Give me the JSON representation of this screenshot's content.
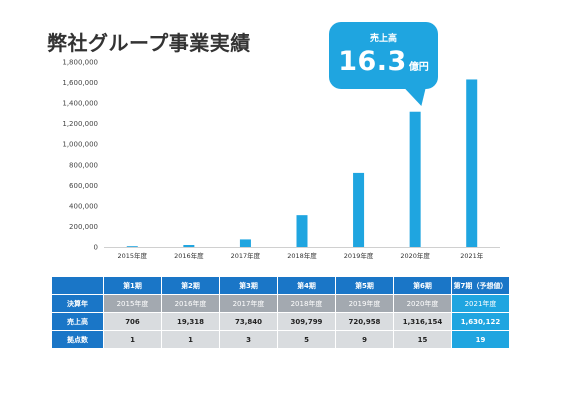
{
  "page_title": "弊社グループ事業実績",
  "callout": {
    "label": "売上高",
    "value": "16.3",
    "unit": "億円"
  },
  "colors": {
    "bar": "#1fa5e0",
    "header": "#1a76c7",
    "highlight": "#1fa5e0",
    "year_cell": "#a3a9b0",
    "value_cell": "#d9dcdf"
  },
  "chart_data": {
    "type": "bar",
    "categories": [
      "2015年度",
      "2016年度",
      "2017年度",
      "2018年度",
      "2019年度",
      "2020年度",
      "2021年"
    ],
    "values": [
      706,
      19318,
      73840,
      309799,
      720958,
      1316154,
      1630122
    ],
    "ylim": [
      0,
      1800000
    ],
    "yticks": [
      "0",
      "200,000",
      "400,000",
      "600,000",
      "800,000",
      "1,000,000",
      "1,200,000",
      "1,400,000",
      "1,600,000",
      "1,800,000"
    ],
    "grid": false,
    "title": "",
    "xlabel": "",
    "ylabel": ""
  },
  "table": {
    "periods": [
      "第1期",
      "第2期",
      "第3期",
      "第4期",
      "第5期",
      "第6期",
      "第7期（予想値）"
    ],
    "rows": [
      {
        "label": "決算年",
        "values": [
          "2015年度",
          "2016年度",
          "2017年度",
          "2018年度",
          "2019年度",
          "2020年度",
          "2021年度"
        ]
      },
      {
        "label": "売上高",
        "values": [
          "706",
          "19,318",
          "73,840",
          "309,799",
          "720,958",
          "1,316,154",
          "1,630,122"
        ]
      },
      {
        "label": "拠点数",
        "values": [
          "1",
          "1",
          "3",
          "5",
          "9",
          "15",
          "19"
        ]
      }
    ]
  }
}
